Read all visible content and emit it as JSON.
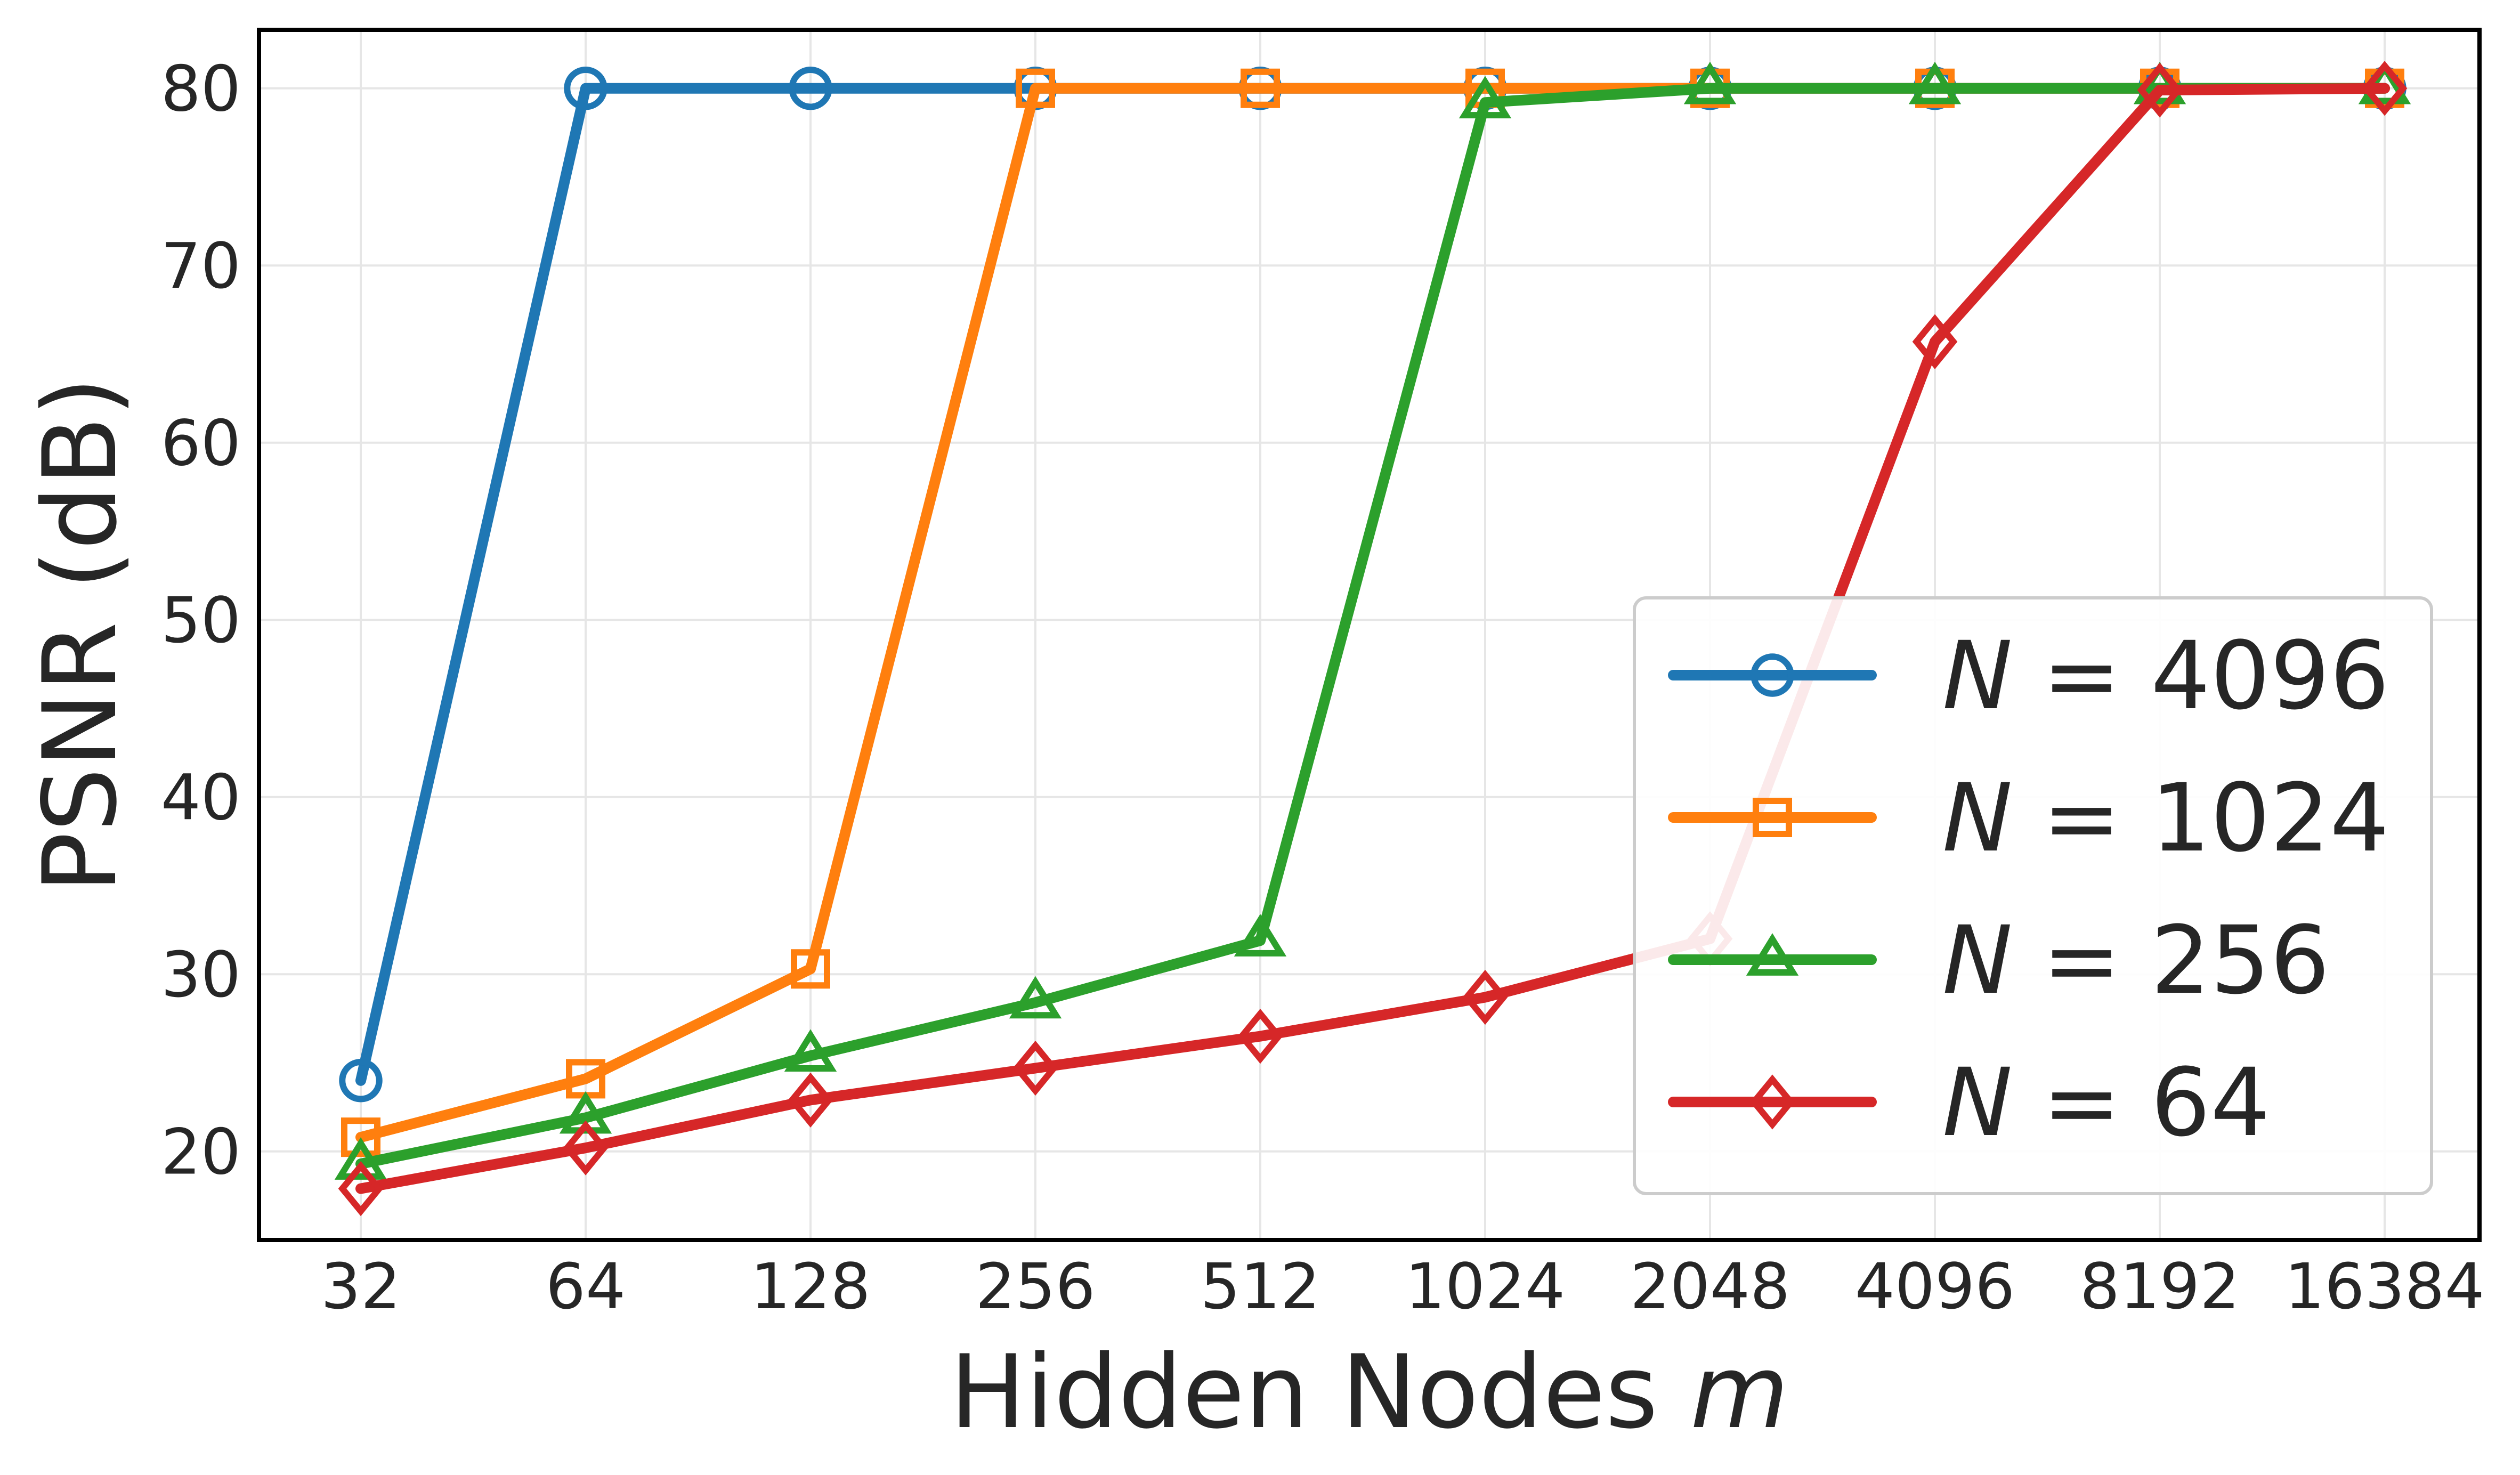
{
  "chart_data": {
    "type": "line",
    "xlabel": "Hidden Nodes",
    "xlabel_var": "m",
    "ylabel": "PSNR (dB)",
    "x_scale": "log2",
    "x": [
      32,
      64,
      128,
      256,
      512,
      1024,
      2048,
      4096,
      8192,
      16384
    ],
    "x_tick_labels": [
      "32",
      "64",
      "128",
      "256",
      "512",
      "1024",
      "2048",
      "4096",
      "8192",
      "16384"
    ],
    "y_ticks": [
      20,
      30,
      40,
      50,
      60,
      70,
      80
    ],
    "ylim": [
      15,
      83.3
    ],
    "grid": true,
    "legend_position": "lower-right",
    "series": [
      {
        "name_var": "N",
        "name_eq": " = ",
        "name_val": "4096",
        "color": "#1f77b4",
        "marker": "circle",
        "values": [
          24.0,
          80.0,
          80.0,
          80.0,
          80.0,
          80.0,
          80.0,
          80.0,
          80.0,
          80.0
        ]
      },
      {
        "name_var": "N",
        "name_eq": " = ",
        "name_val": "1024",
        "color": "#ff7f0e",
        "marker": "square",
        "values": [
          20.8,
          24.1,
          30.3,
          80.0,
          80.0,
          80.0,
          80.0,
          80.0,
          80.0,
          80.0
        ]
      },
      {
        "name_var": "N",
        "name_eq": " = ",
        "name_val": "256",
        "color": "#2ca02c",
        "marker": "triangle",
        "values": [
          19.3,
          21.9,
          25.4,
          28.4,
          31.9,
          79.2,
          80.0,
          80.0,
          80.0,
          80.0
        ]
      },
      {
        "name_var": "N",
        "name_eq": " = ",
        "name_val": "64",
        "color": "#d62728",
        "marker": "diamond",
        "values": [
          17.9,
          20.2,
          22.9,
          24.7,
          26.5,
          28.7,
          32.0,
          65.7,
          79.9,
          80.0
        ]
      }
    ]
  }
}
